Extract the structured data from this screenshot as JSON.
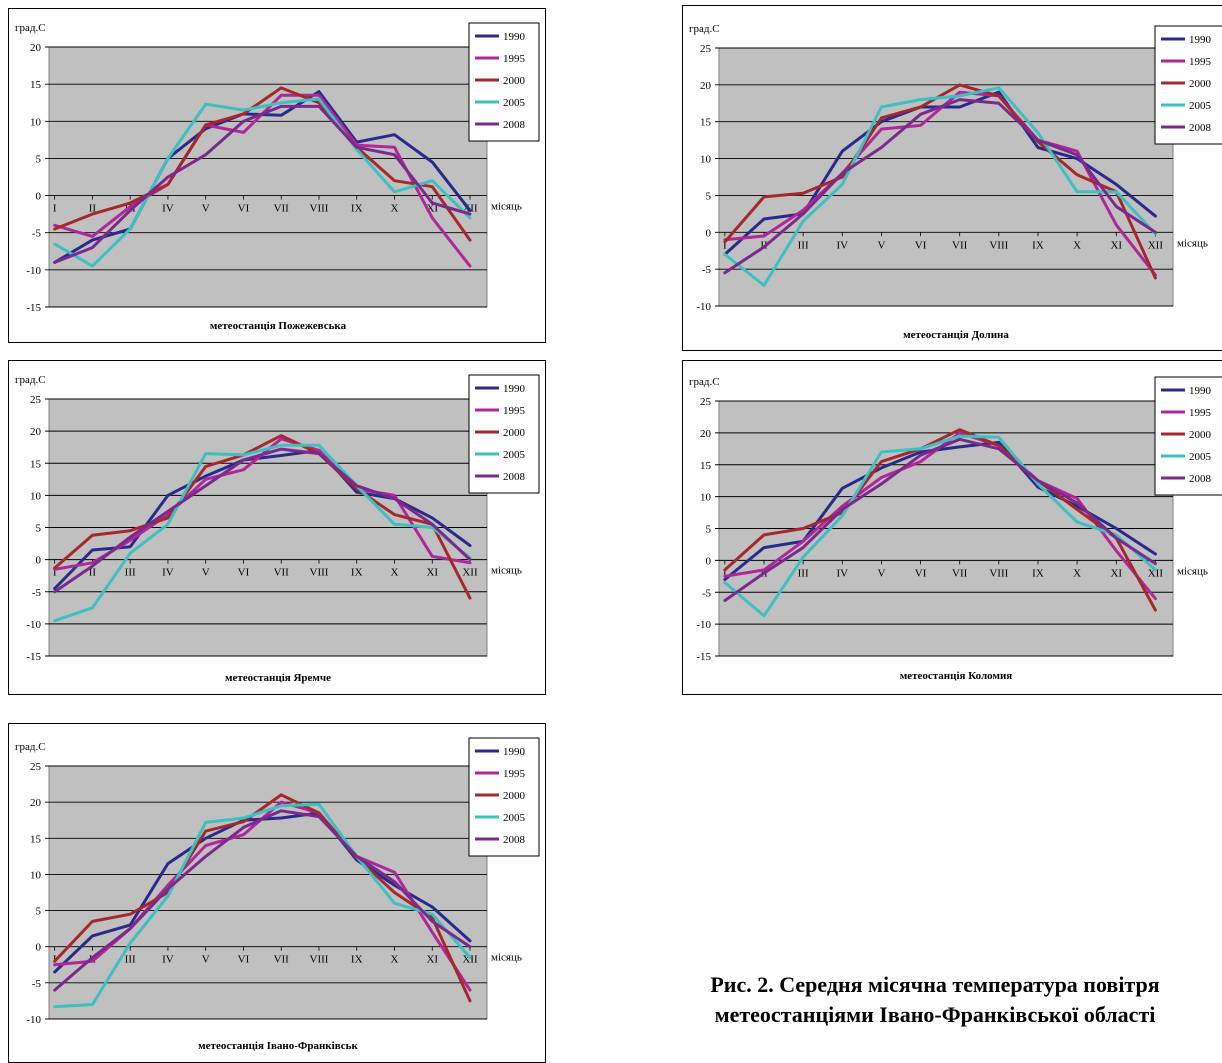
{
  "figure_caption": {
    "line1": "Рис. 2. Середня місячна температура повітря",
    "line2": "метеостанціями Івано-Франківської області"
  },
  "chart_data": [
    {
      "id": "p1",
      "type": "line",
      "title": "метеостанція Пожежевська",
      "ylabel": "град.С",
      "xlabel": "місяць",
      "ylim": [
        -15,
        20
      ],
      "yticks": [
        -15,
        -10,
        -5,
        0,
        5,
        10,
        15,
        20
      ],
      "categories": [
        "I",
        "II",
        "III",
        "IV",
        "V",
        "VI",
        "VII",
        "VIII",
        "IX",
        "X",
        "XI",
        "XII"
      ],
      "grid": true,
      "legend": "top-right",
      "series": [
        {
          "name": "1990",
          "color": "#2a2a8c",
          "values": [
            -9,
            -6,
            -4.5,
            5,
            9,
            11,
            10.8,
            14,
            7.2,
            8.2,
            4.5,
            -2
          ]
        },
        {
          "name": "1995",
          "color": "#b0279a",
          "values": [
            -4,
            -5.5,
            -1.5,
            1.5,
            9.5,
            8.5,
            13.5,
            13.5,
            6.8,
            6.5,
            -3,
            -9.5
          ]
        },
        {
          "name": "2000",
          "color": "#a5282c",
          "values": [
            -4.5,
            -2.5,
            -1,
            1.5,
            9.5,
            11,
            14.5,
            12.5,
            6.5,
            2,
            1.2,
            -6
          ]
        },
        {
          "name": "2005",
          "color": "#3cc0c0",
          "values": [
            -6.5,
            -9.5,
            -4.5,
            5,
            12.3,
            11.5,
            12.5,
            13,
            6.2,
            0.5,
            2,
            -3
          ]
        },
        {
          "name": "2008",
          "color": "#7b2a8c",
          "values": [
            -9,
            -7,
            -2,
            2.5,
            5.5,
            10,
            12,
            12,
            6.5,
            5.5,
            -1,
            -2.5
          ]
        }
      ]
    },
    {
      "id": "p2",
      "type": "line",
      "title": "метеостанція Долина",
      "ylabel": "град.С",
      "xlabel": "місяць",
      "ylim": [
        -10,
        25
      ],
      "yticks": [
        -10,
        -5,
        0,
        5,
        10,
        15,
        20,
        25
      ],
      "categories": [
        "I",
        "II",
        "III",
        "IV",
        "V",
        "VI",
        "VII",
        "VIII",
        "IX",
        "X",
        "XI",
        "XII"
      ],
      "grid": true,
      "legend": "top-right",
      "series": [
        {
          "name": "1990",
          "color": "#2a2a8c",
          "values": [
            -3,
            1.8,
            2.5,
            11,
            15,
            17,
            17,
            19,
            11.5,
            10,
            6.5,
            2.2
          ]
        },
        {
          "name": "1995",
          "color": "#b0279a",
          "values": [
            -1,
            -0.5,
            3,
            8,
            14,
            14.5,
            19,
            18.5,
            12.5,
            11,
            1,
            -5.8
          ]
        },
        {
          "name": "2000",
          "color": "#a5282c",
          "values": [
            -1.3,
            4.8,
            5.3,
            7.5,
            15.5,
            17,
            20,
            18.5,
            12.3,
            7.8,
            5.5,
            -6.2
          ]
        },
        {
          "name": "2005",
          "color": "#3cc0c0",
          "values": [
            -3,
            -7.2,
            1.5,
            6.5,
            17,
            18,
            18.5,
            19.6,
            13.5,
            5.5,
            5.5,
            -0.2
          ]
        },
        {
          "name": "2008",
          "color": "#7b2a8c",
          "values": [
            -5.5,
            -2,
            2.5,
            8,
            11.5,
            16,
            18,
            17.5,
            12.5,
            10.5,
            3.5,
            0
          ]
        }
      ]
    },
    {
      "id": "p3",
      "type": "line",
      "title": "метеостанція Яремче",
      "ylabel": "град.С",
      "xlabel": "місяць",
      "ylim": [
        -15,
        25
      ],
      "yticks": [
        -15,
        -10,
        -5,
        0,
        5,
        10,
        15,
        20,
        25
      ],
      "categories": [
        "I",
        "II",
        "III",
        "IV",
        "V",
        "VI",
        "VII",
        "VIII",
        "IX",
        "X",
        "XI",
        "XII"
      ],
      "grid": true,
      "legend": "top-right",
      "series": [
        {
          "name": "1990",
          "color": "#2a2a8c",
          "values": [
            -4.5,
            1.5,
            2,
            10,
            13,
            15.5,
            16.2,
            17,
            10.5,
            9.5,
            6.5,
            2.2
          ]
        },
        {
          "name": "1995",
          "color": "#b0279a",
          "values": [
            -1.5,
            -0.5,
            3,
            7,
            12.5,
            14,
            18.8,
            17,
            11,
            10,
            0.5,
            -0.5
          ]
        },
        {
          "name": "2000",
          "color": "#a5282c",
          "values": [
            -1.3,
            3.8,
            4.5,
            6.5,
            14.5,
            16.3,
            19.3,
            16.5,
            11,
            7,
            5.5,
            -6
          ]
        },
        {
          "name": "2005",
          "color": "#3cc0c0",
          "values": [
            -9.5,
            -7.5,
            1,
            5.5,
            16.5,
            16.3,
            17.8,
            17.8,
            11.5,
            5.5,
            5,
            0.3
          ]
        },
        {
          "name": "2008",
          "color": "#7b2a8c",
          "values": [
            -5,
            -1,
            3.5,
            7.5,
            11.5,
            15.5,
            17.2,
            16.5,
            11.5,
            9.5,
            5.5,
            0
          ]
        }
      ]
    },
    {
      "id": "p4",
      "type": "line",
      "title": "метеостанція Коломия",
      "ylabel": "град.С",
      "xlabel": "місяць",
      "ylim": [
        -15,
        25
      ],
      "yticks": [
        -15,
        -10,
        -5,
        0,
        5,
        10,
        15,
        20,
        25
      ],
      "categories": [
        "I",
        "II",
        "III",
        "IV",
        "V",
        "VI",
        "VII",
        "VIII",
        "IX",
        "X",
        "XI",
        "XII"
      ],
      "grid": true,
      "legend": "top-right",
      "series": [
        {
          "name": "1990",
          "color": "#2a2a8c",
          "values": [
            -3,
            2,
            3,
            11.3,
            14.5,
            17,
            17.8,
            18.5,
            11.5,
            8.5,
            5,
            1
          ]
        },
        {
          "name": "1995",
          "color": "#b0279a",
          "values": [
            -2.5,
            -1.5,
            3,
            8.5,
            13,
            15.5,
            20,
            18,
            12.5,
            9.7,
            1.5,
            -6
          ]
        },
        {
          "name": "2000",
          "color": "#a5282c",
          "values": [
            -1.5,
            4,
            5,
            7.5,
            15.5,
            17.5,
            20.5,
            18,
            12.5,
            8,
            3.5,
            -7.8
          ]
        },
        {
          "name": "2005",
          "color": "#3cc0c0",
          "values": [
            -3.5,
            -8.7,
            0.5,
            7,
            17,
            17.5,
            19.5,
            19.3,
            12,
            6,
            4,
            -1.5
          ]
        },
        {
          "name": "2008",
          "color": "#7b2a8c",
          "values": [
            -6.3,
            -2,
            2,
            8,
            12,
            16.5,
            19,
            17.5,
            12.5,
            9,
            3.5,
            -0.5
          ]
        }
      ]
    },
    {
      "id": "p5",
      "type": "line",
      "title": "метеостанція Івано-Франківськ",
      "ylabel": "град.С",
      "xlabel": "місяць",
      "ylim": [
        -10,
        25
      ],
      "yticks": [
        -10,
        -5,
        0,
        5,
        10,
        15,
        20,
        25
      ],
      "categories": [
        "I",
        "II",
        "III",
        "IV",
        "V",
        "VI",
        "VII",
        "VIII",
        "IX",
        "X",
        "XI",
        "XII"
      ],
      "grid": true,
      "legend": "top-right",
      "series": [
        {
          "name": "1990",
          "color": "#2a2a8c",
          "values": [
            -3.5,
            1.5,
            3,
            11.5,
            15,
            17.5,
            17.8,
            18.5,
            12,
            8.5,
            5.5,
            0.8
          ]
        },
        {
          "name": "1995",
          "color": "#b0279a",
          "values": [
            -2.5,
            -2,
            2.5,
            8.5,
            14,
            15.5,
            20,
            18.5,
            12.5,
            10.3,
            2,
            -6
          ]
        },
        {
          "name": "2000",
          "color": "#a5282c",
          "values": [
            -2,
            3.5,
            4.5,
            7.5,
            16,
            17.3,
            21,
            18.5,
            12.3,
            7.5,
            4,
            -7.5
          ]
        },
        {
          "name": "2005",
          "color": "#3cc0c0",
          "values": [
            -8.3,
            -8,
            0.5,
            7,
            17.2,
            17.8,
            19.5,
            19.7,
            12.5,
            6,
            4.5,
            -1.5
          ]
        },
        {
          "name": "2008",
          "color": "#7b2a8c",
          "values": [
            -6,
            -1.5,
            2.5,
            8,
            12.5,
            16.5,
            18.8,
            18,
            12.5,
            9,
            3.5,
            0
          ]
        }
      ]
    }
  ]
}
